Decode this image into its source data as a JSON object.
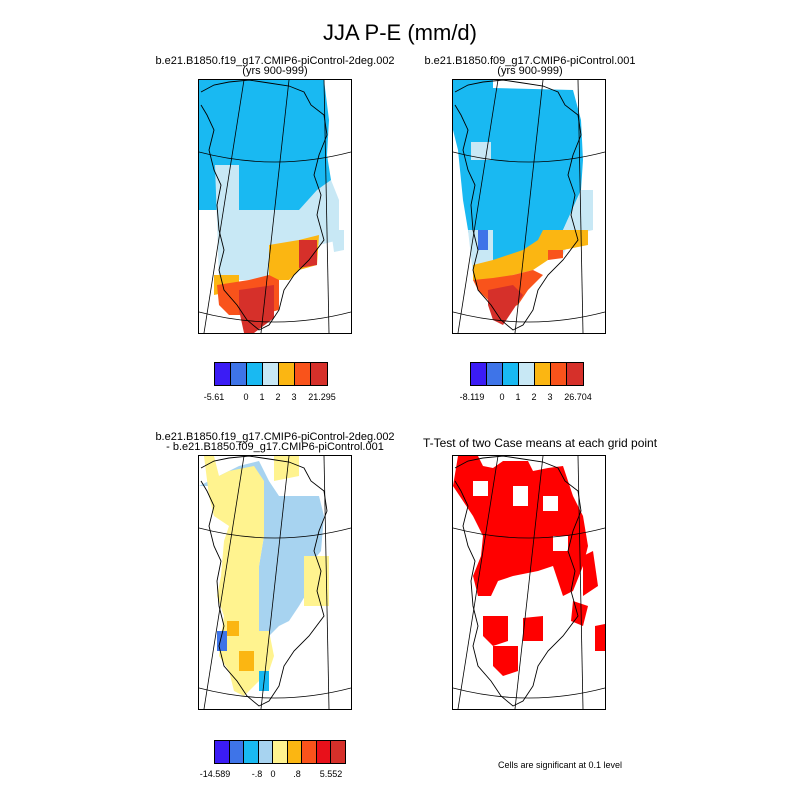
{
  "figure": {
    "title": "JJA P-E (mm/d)",
    "note": "Cells are significant at 0.1 level"
  },
  "panels": [
    {
      "id": "case1",
      "title_line1": "b.e21.B1850.f19_g17.CMIP6-piControl-2deg.002",
      "title_line2": "(yrs 900-999)",
      "colorbar": {
        "colors": [
          "#3b1cf5",
          "#3e74e8",
          "#19b9f2",
          "#c8e8f5",
          "#fbb612",
          "#f9531b",
          "#d6302a"
        ],
        "tick_labels": [
          "-5.61",
          "0",
          "1",
          "2",
          "3",
          "21.295"
        ]
      }
    },
    {
      "id": "case2",
      "title_line1": "b.e21.B1850.f09_g17.CMIP6-piControl.001",
      "title_line2": "(yrs 900-999)",
      "colorbar": {
        "colors": [
          "#3b1cf5",
          "#3e74e8",
          "#19b9f2",
          "#c8e8f5",
          "#fbb612",
          "#f9531b",
          "#d6302a"
        ],
        "tick_labels": [
          "-8.119",
          "0",
          "1",
          "2",
          "3",
          "26.704"
        ]
      }
    },
    {
      "id": "difference",
      "title_line1": "b.e21.B1850.f19_g17.CMIP6-piControl-2deg.002",
      "title_line2": "- b.e21.B1850.f09_g17.CMIP6-piControl.001",
      "colorbar": {
        "colors": [
          "#3b1cf5",
          "#3e74e8",
          "#19b9f2",
          "#a7d3f0",
          "#fff38f",
          "#fbb612",
          "#f9531b",
          "#e8101a",
          "#d6302a"
        ],
        "tick_labels": [
          "-14.589",
          "-.8",
          "0",
          ".8",
          "5.552"
        ]
      }
    },
    {
      "id": "ttest",
      "title_line1": "T-Test of two Case means at each grid point",
      "title_line2": "",
      "fill_color": "#ff0000"
    }
  ]
}
